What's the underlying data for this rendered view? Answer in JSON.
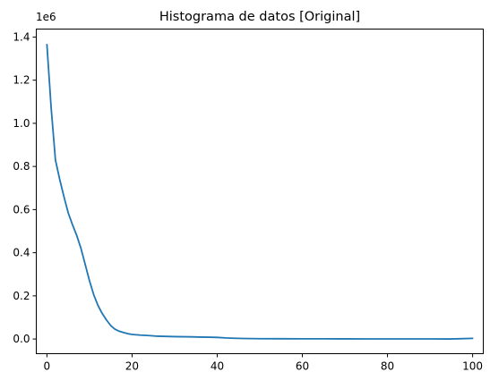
{
  "chart_data": {
    "type": "line",
    "title": "Histograma de datos [Original]",
    "xlabel": "",
    "ylabel": "",
    "xlim": [
      -2.5,
      102.5
    ],
    "ylim": [
      -68000,
      1437000
    ],
    "y_offset_label": "1e6",
    "x_ticks": [
      0,
      20,
      40,
      60,
      80,
      100
    ],
    "x_tick_labels": [
      "0",
      "20",
      "40",
      "60",
      "80",
      "100"
    ],
    "y_ticks": [
      0,
      200000,
      400000,
      600000,
      800000,
      1000000,
      1200000,
      1400000
    ],
    "y_tick_labels": [
      "0.0",
      "0.2",
      "0.4",
      "0.6",
      "0.8",
      "1.0",
      "1.2",
      "1.4"
    ],
    "grid": false,
    "series": [
      {
        "color": "#1f77b4",
        "x": [
          0,
          1,
          2,
          3,
          4,
          5,
          6,
          7,
          8,
          9,
          10,
          11,
          12,
          13,
          14,
          15,
          16,
          17,
          18,
          19,
          20,
          22,
          24,
          26,
          28,
          30,
          32,
          34,
          36,
          38,
          40,
          42,
          44,
          46,
          48,
          50,
          55,
          60,
          65,
          70,
          75,
          80,
          85,
          90,
          95,
          100
        ],
        "y": [
          1365000,
          1070000,
          830000,
          740000,
          660000,
          585000,
          530000,
          480000,
          420000,
          345000,
          270000,
          205000,
          155000,
          118000,
          88000,
          62000,
          45000,
          36000,
          30000,
          25000,
          21000,
          18000,
          16000,
          13000,
          12000,
          11000,
          10500,
          10000,
          9000,
          8500,
          7500,
          5000,
          3500,
          2500,
          2000,
          1500,
          1200,
          1000,
          800,
          600,
          500,
          400,
          300,
          300,
          200,
          3000
        ]
      }
    ]
  }
}
